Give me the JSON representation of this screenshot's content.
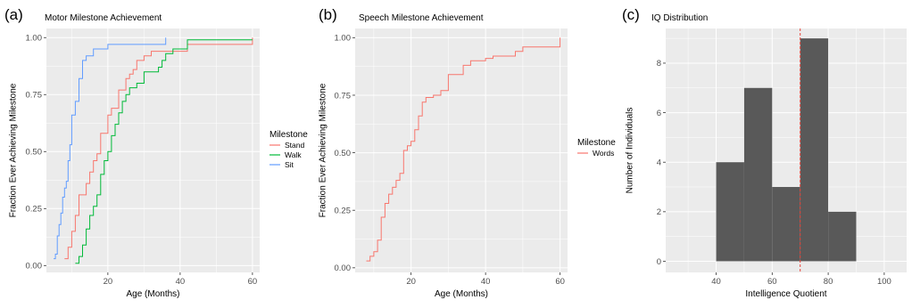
{
  "chart_data": [
    {
      "panel": "(a)",
      "type": "line",
      "step": true,
      "title": "Motor Milestone Achievement",
      "xlabel": "Age (Months)",
      "ylabel": "Fraction Ever Achieving Milestone",
      "xlim": [
        3,
        62
      ],
      "ylim": [
        -0.03,
        1.04
      ],
      "xticks": [
        20,
        40,
        60
      ],
      "yticks": [
        0,
        0.25,
        0.5,
        0.75,
        1.0
      ],
      "ytick_labels": [
        "0.00",
        "0.25",
        "0.50",
        "0.75",
        "1.00"
      ],
      "grid": true,
      "legend": {
        "title": "Milestone",
        "placement": "right"
      },
      "series": [
        {
          "name": "Stand",
          "color": "#F8766D",
          "x": [
            8,
            9,
            10,
            11,
            12,
            13,
            14,
            15,
            16,
            17,
            18,
            19,
            20,
            21,
            22,
            23,
            24,
            25,
            26,
            27,
            28,
            29,
            30,
            31,
            32,
            33,
            35,
            36,
            38,
            42,
            60
          ],
          "y": [
            0.03,
            0.08,
            0.15,
            0.22,
            0.31,
            0.31,
            0.36,
            0.41,
            0.46,
            0.49,
            0.58,
            0.58,
            0.66,
            0.69,
            0.69,
            0.77,
            0.77,
            0.82,
            0.84,
            0.86,
            0.9,
            0.9,
            0.92,
            0.92,
            0.94,
            0.94,
            0.94,
            0.94,
            0.94,
            0.97,
            1.0
          ]
        },
        {
          "name": "Walk",
          "color": "#00BA38",
          "x": [
            11,
            12,
            13,
            14,
            15,
            16,
            17,
            18,
            19,
            20,
            21,
            22,
            23,
            24,
            25,
            26,
            27,
            28,
            29,
            30,
            32,
            33,
            34,
            35,
            36,
            38,
            42,
            60
          ],
          "y": [
            0.01,
            0.04,
            0.09,
            0.16,
            0.22,
            0.26,
            0.31,
            0.4,
            0.46,
            0.5,
            0.57,
            0.62,
            0.67,
            0.72,
            0.75,
            0.78,
            0.78,
            0.8,
            0.8,
            0.85,
            0.85,
            0.85,
            0.87,
            0.9,
            0.93,
            0.95,
            0.99,
            0.99
          ]
        },
        {
          "name": "Sit",
          "color": "#619CFF",
          "x": [
            5,
            5.5,
            6,
            6.5,
            7,
            7.5,
            8,
            8.5,
            9,
            9.5,
            10,
            11,
            12,
            13,
            14,
            16,
            18,
            20,
            24,
            30,
            36
          ],
          "y": [
            0.03,
            0.05,
            0.13,
            0.18,
            0.23,
            0.3,
            0.34,
            0.37,
            0.46,
            0.53,
            0.66,
            0.72,
            0.82,
            0.9,
            0.92,
            0.95,
            0.95,
            0.97,
            0.97,
            0.97,
            1.0
          ]
        }
      ]
    },
    {
      "panel": "(b)",
      "type": "line",
      "step": true,
      "title": "Speech Milestone Achievement",
      "xlabel": "Age (Months)",
      "ylabel": "Fraction Ever Achieving Milestone",
      "xlim": [
        5,
        62
      ],
      "ylim": [
        -0.02,
        1.04
      ],
      "xticks": [
        20,
        40,
        60
      ],
      "yticks": [
        0,
        0.25,
        0.5,
        0.75,
        1.0
      ],
      "ytick_labels": [
        "0.00",
        "0.25",
        "0.50",
        "0.75",
        "1.00"
      ],
      "grid": true,
      "legend": {
        "title": "Milestone",
        "placement": "right"
      },
      "series": [
        {
          "name": "Words",
          "color": "#F8766D",
          "x": [
            8,
            9,
            10,
            11,
            12,
            13,
            14,
            15,
            16,
            17,
            18,
            19,
            20,
            21,
            22,
            23,
            24,
            25,
            26,
            28,
            30,
            32,
            34,
            36,
            40,
            42,
            48,
            50,
            60
          ],
          "y": [
            0.03,
            0.05,
            0.07,
            0.12,
            0.22,
            0.28,
            0.32,
            0.35,
            0.38,
            0.41,
            0.51,
            0.53,
            0.55,
            0.6,
            0.66,
            0.72,
            0.74,
            0.74,
            0.75,
            0.77,
            0.84,
            0.84,
            0.88,
            0.9,
            0.91,
            0.92,
            0.94,
            0.96,
            1.0
          ]
        }
      ]
    },
    {
      "panel": "(c)",
      "type": "bar",
      "histogram": true,
      "title": "IQ Distribution",
      "xlabel": "Intelligence Quotient",
      "ylabel": "Number of Individuals",
      "xlim": [
        22,
        108
      ],
      "ylim": [
        -0.45,
        9.4
      ],
      "xticks": [
        40,
        60,
        80,
        100
      ],
      "yticks": [
        0,
        2,
        4,
        6,
        8
      ],
      "grid": true,
      "bar_color": "#595959",
      "bins": [
        [
          40,
          50
        ],
        [
          50,
          60
        ],
        [
          60,
          70
        ],
        [
          70,
          80
        ],
        [
          80,
          90
        ]
      ],
      "values": [
        4,
        7,
        3,
        9,
        2
      ],
      "vline": {
        "x": 70,
        "color": "#e8443a",
        "style": "dashed"
      }
    }
  ]
}
